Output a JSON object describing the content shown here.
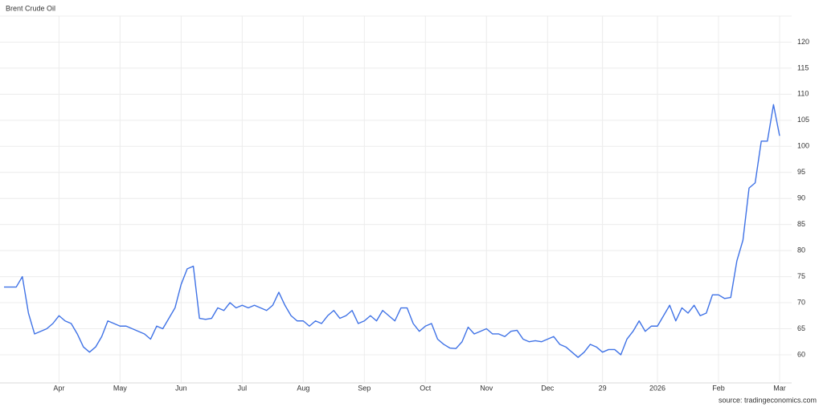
{
  "chart_data": {
    "type": "line",
    "title": "Brent Crude Oil",
    "source": "source: tradingeconomics.com",
    "categories": [
      null,
      null,
      null,
      null,
      null,
      null,
      null,
      null,
      null,
      "Apr",
      null,
      null,
      null,
      null,
      null,
      null,
      null,
      null,
      null,
      "May",
      null,
      null,
      null,
      null,
      null,
      null,
      null,
      null,
      null,
      "Jun",
      null,
      null,
      null,
      null,
      null,
      null,
      null,
      null,
      null,
      "Jul",
      null,
      null,
      null,
      null,
      null,
      null,
      null,
      null,
      null,
      "Aug",
      null,
      null,
      null,
      null,
      null,
      null,
      null,
      null,
      null,
      "Sep",
      null,
      null,
      null,
      null,
      null,
      null,
      null,
      null,
      null,
      "Oct",
      null,
      null,
      null,
      null,
      null,
      null,
      null,
      null,
      null,
      "Nov",
      null,
      null,
      null,
      null,
      null,
      null,
      null,
      null,
      null,
      "Dec",
      null,
      null,
      null,
      null,
      null,
      null,
      null,
      null,
      "29",
      null,
      null,
      null,
      null,
      null,
      null,
      null,
      null,
      "2026",
      null,
      null,
      null,
      null,
      null,
      null,
      null,
      null,
      null,
      "Feb",
      null,
      null,
      null,
      null,
      null,
      null,
      null,
      null,
      null,
      "Mar"
    ],
    "series": [
      {
        "name": "Brent Crude Oil",
        "color": "#3f72e6",
        "values": [
          73,
          73,
          73,
          75,
          68,
          64,
          64.5,
          65,
          66,
          67.5,
          66.5,
          66,
          64,
          61.5,
          60.5,
          61.5,
          63.5,
          66.5,
          66,
          65.5,
          65.5,
          65,
          64.5,
          64,
          63,
          65.5,
          65,
          67,
          69,
          73.5,
          76.5,
          77,
          67,
          66.8,
          67,
          69,
          68.5,
          70,
          69,
          69.5,
          69,
          69.5,
          69,
          68.5,
          69.5,
          72,
          69.5,
          67.5,
          66.5,
          66.5,
          65.5,
          66.5,
          66,
          67.5,
          68.5,
          67,
          67.5,
          68.5,
          66,
          66.5,
          67.5,
          66.5,
          68.5,
          67.5,
          66.5,
          69,
          69,
          66,
          64.5,
          65.5,
          66,
          63,
          62,
          61.3,
          61.2,
          62.5,
          65.3,
          64,
          64.5,
          65,
          64,
          64,
          63.5,
          64.5,
          64.7,
          63,
          62.5,
          62.7,
          62.5,
          63,
          63.5,
          62,
          61.5,
          60.5,
          59.5,
          60.5,
          62,
          61.5,
          60.5,
          61,
          61,
          60,
          63,
          64.5,
          66.5,
          64.5,
          65.5,
          65.5,
          67.5,
          69.5,
          66.5,
          69,
          68,
          69.5,
          67.5,
          68,
          71.5,
          71.5,
          70.8,
          71,
          78,
          82,
          92,
          93,
          101,
          101,
          108,
          102
        ]
      }
    ],
    "ylim": [
      54.6,
      125
    ],
    "yticks": [
      60,
      65,
      70,
      75,
      80,
      85,
      90,
      95,
      100,
      105,
      110,
      115,
      120
    ],
    "grid": true
  }
}
